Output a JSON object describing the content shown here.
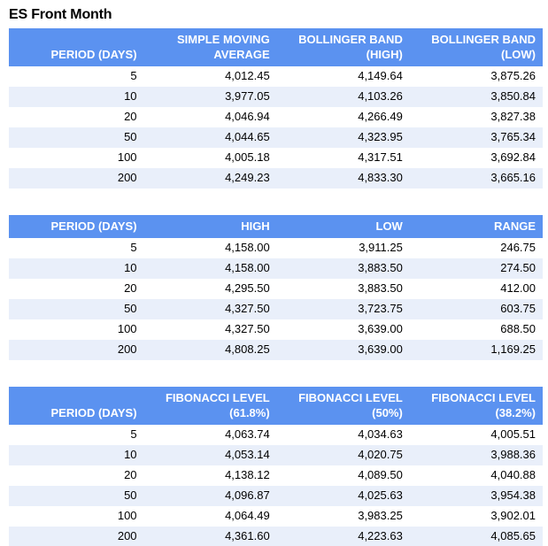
{
  "page": {
    "title": "ES Front Month"
  },
  "colors": {
    "header_bg": "#5b92f0",
    "header_text": "#ffffff",
    "row_alt_bg": "#e9effa",
    "cell_text": "#000000",
    "page_bg": "#ffffff"
  },
  "chart_data": [
    {
      "type": "table",
      "name": "moving-average-bollinger-table",
      "columns": [
        "PERIOD (DAYS)",
        "SIMPLE MOVING AVERAGE",
        "BOLLINGER BAND (HIGH)",
        "BOLLINGER BAND (LOW)"
      ],
      "rows": [
        [
          "5",
          "4,012.45",
          "4,149.64",
          "3,875.26"
        ],
        [
          "10",
          "3,977.05",
          "4,103.26",
          "3,850.84"
        ],
        [
          "20",
          "4,046.94",
          "4,266.49",
          "3,827.38"
        ],
        [
          "50",
          "4,044.65",
          "4,323.95",
          "3,765.34"
        ],
        [
          "100",
          "4,005.18",
          "4,317.51",
          "3,692.84"
        ],
        [
          "200",
          "4,249.23",
          "4,833.30",
          "3,665.16"
        ]
      ]
    },
    {
      "type": "table",
      "name": "high-low-range-table",
      "columns": [
        "PERIOD (DAYS)",
        "HIGH",
        "LOW",
        "RANGE"
      ],
      "rows": [
        [
          "5",
          "4,158.00",
          "3,911.25",
          "246.75"
        ],
        [
          "10",
          "4,158.00",
          "3,883.50",
          "274.50"
        ],
        [
          "20",
          "4,295.50",
          "3,883.50",
          "412.00"
        ],
        [
          "50",
          "4,327.50",
          "3,723.75",
          "603.75"
        ],
        [
          "100",
          "4,327.50",
          "3,639.00",
          "688.50"
        ],
        [
          "200",
          "4,808.25",
          "3,639.00",
          "1,169.25"
        ]
      ]
    },
    {
      "type": "table",
      "name": "fibonacci-levels-table",
      "columns": [
        "PERIOD (DAYS)",
        "FIBONACCI LEVEL (61.8%)",
        "FIBONACCI LEVEL (50%)",
        "FIBONACCI LEVEL (38.2%)"
      ],
      "rows": [
        [
          "5",
          "4,063.74",
          "4,034.63",
          "4,005.51"
        ],
        [
          "10",
          "4,053.14",
          "4,020.75",
          "3,988.36"
        ],
        [
          "20",
          "4,138.12",
          "4,089.50",
          "4,040.88"
        ],
        [
          "50",
          "4,096.87",
          "4,025.63",
          "3,954.38"
        ],
        [
          "100",
          "4,064.49",
          "3,983.25",
          "3,902.01"
        ],
        [
          "200",
          "4,361.60",
          "4,223.63",
          "4,085.65"
        ]
      ]
    }
  ]
}
